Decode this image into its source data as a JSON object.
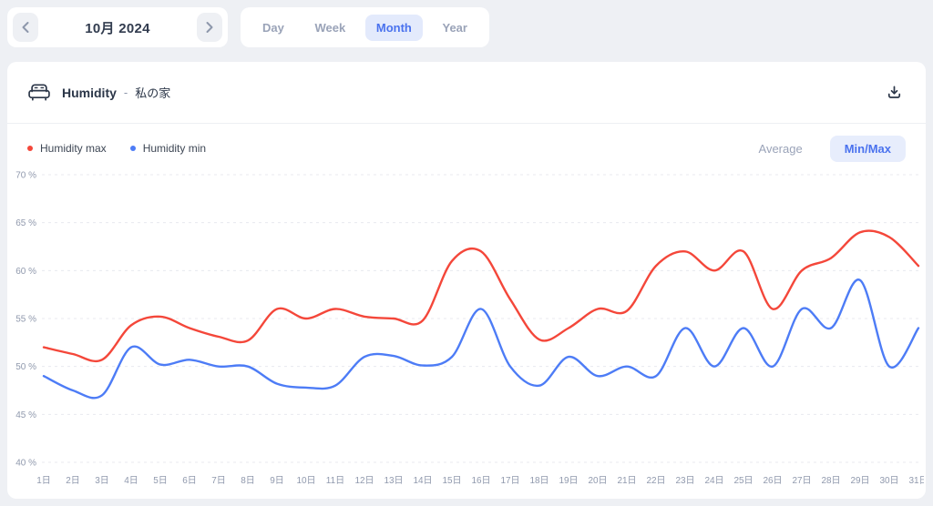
{
  "date_nav": {
    "label": "10月 2024"
  },
  "range_tabs": [
    {
      "label": "Day",
      "active": false
    },
    {
      "label": "Week",
      "active": false
    },
    {
      "label": "Month",
      "active": true
    },
    {
      "label": "Year",
      "active": false
    }
  ],
  "card": {
    "title": "Humidity",
    "separator": "-",
    "subtitle": "私の家",
    "icons": {
      "device": "sofa-icon",
      "export": "download-icon",
      "prev": "chevron-left-icon",
      "next": "chevron-right-icon"
    },
    "mode_toggle": [
      {
        "label": "Average",
        "active": false
      },
      {
        "label": "Min/Max",
        "active": true
      }
    ]
  },
  "colors": {
    "accent_blue": "#4a72ee",
    "pill_bg": "#e7edfc",
    "series_max": "#f4473a",
    "series_min": "#4d7cf6",
    "grid": "#e8eaef",
    "axis_label": "#9099ad"
  },
  "chart_data": {
    "type": "line",
    "title": "Humidity - 私の家",
    "x": [
      "1日",
      "2日",
      "3日",
      "4日",
      "5日",
      "6日",
      "7日",
      "8日",
      "9日",
      "10日",
      "11日",
      "12日",
      "13日",
      "14日",
      "15日",
      "16日",
      "17日",
      "18日",
      "19日",
      "20日",
      "21日",
      "22日",
      "23日",
      "24日",
      "25日",
      "26日",
      "27日",
      "28日",
      "29日",
      "30日",
      "31日"
    ],
    "series": [
      {
        "name": "Humidity max",
        "color": "#f4473a",
        "values": [
          52,
          51.3,
          50.7,
          54.3,
          55.2,
          54,
          53.1,
          52.7,
          56,
          55,
          56,
          55.2,
          55,
          54.8,
          61,
          62,
          57,
          52.8,
          54,
          56,
          55.8,
          60.5,
          62,
          60,
          62,
          56,
          60,
          61.3,
          64,
          63.5,
          60.5
        ]
      },
      {
        "name": "Humidity min",
        "color": "#4d7cf6",
        "values": [
          49,
          47.5,
          47,
          52,
          50.2,
          50.7,
          50,
          50,
          48.2,
          47.8,
          48,
          51,
          51.1,
          50.1,
          51,
          56,
          50,
          48,
          51,
          49,
          50,
          49,
          54,
          50,
          54,
          50,
          56,
          54,
          59,
          50,
          54
        ]
      }
    ],
    "yticks": [
      "70 %",
      "65 %",
      "60 %",
      "55 %",
      "50 %",
      "45 %",
      "40 %"
    ],
    "ylim": [
      40,
      70
    ],
    "unit": "%",
    "grid": "horizontal-dashed",
    "legend_position": "top-left"
  }
}
